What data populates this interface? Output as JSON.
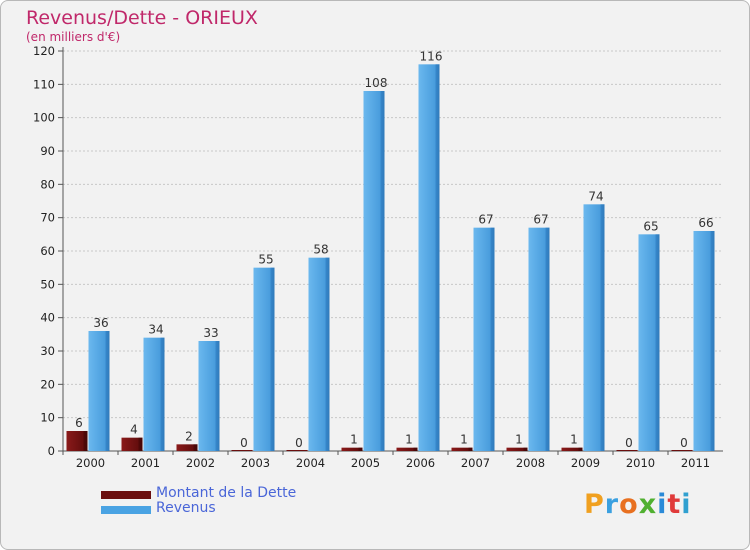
{
  "chart_data": {
    "type": "bar",
    "title": "Revenus/Dette - ORIEUX",
    "subtitle": "(en milliers d'€)",
    "categories": [
      "2000",
      "2001",
      "2002",
      "2003",
      "2004",
      "2005",
      "2006",
      "2007",
      "2008",
      "2009",
      "2010",
      "2011"
    ],
    "series": [
      {
        "name": "Montant de la Dette",
        "color": "#6b0f0f",
        "values": [
          6,
          4,
          2,
          0,
          0,
          1,
          1,
          1,
          1,
          1,
          0,
          0
        ]
      },
      {
        "name": "Revenus",
        "color": "#4aa3e3",
        "values": [
          36,
          34,
          33,
          55,
          58,
          108,
          116,
          67,
          67,
          74,
          65,
          66
        ]
      }
    ],
    "ylim": [
      0,
      120
    ],
    "yticks": [
      0,
      10,
      20,
      30,
      40,
      50,
      60,
      70,
      80,
      90,
      100,
      110,
      120
    ],
    "grid": true,
    "legend": "bottom-left"
  },
  "logo": {
    "text": "Proxiti"
  }
}
